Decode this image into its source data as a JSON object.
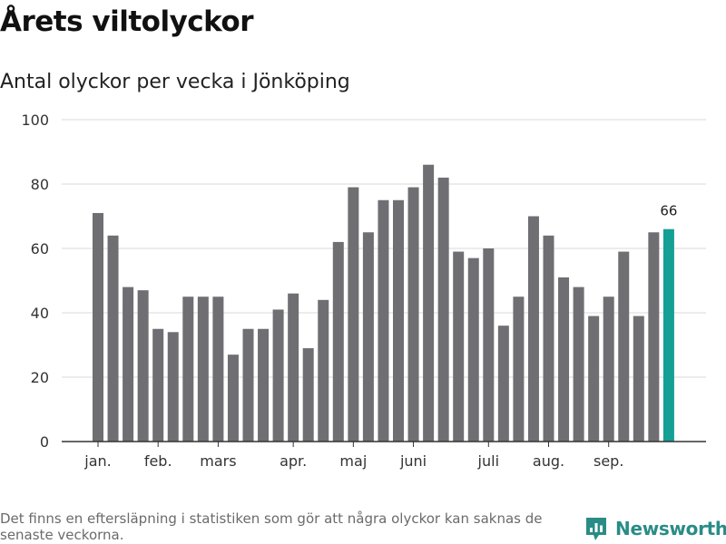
{
  "header": {
    "title": "Årets viltolyckor",
    "subtitle": "Antal olyckor per vecka i Jönköping"
  },
  "footer": {
    "note": "Det finns en eftersläpning i statistiken som gör att några olyckor kan saknas de senaste veckorna.",
    "brand": "Newsworthy"
  },
  "colors": {
    "bar": "#6f6e72",
    "highlight": "#14a095",
    "grid": "#d9d9d9",
    "axis": "#333333",
    "brand": "#2a8c86"
  },
  "icons": {
    "brand_logo": "bar-chart-speech-bubble-icon"
  },
  "chart_data": {
    "type": "bar",
    "title": "Årets viltolyckor",
    "subtitle": "Antal olyckor per vecka i Jönköping",
    "xlabel": "",
    "ylabel": "",
    "ylim": [
      0,
      100
    ],
    "yticks": [
      0,
      20,
      40,
      60,
      80,
      100
    ],
    "grid": true,
    "legend": "none",
    "values": [
      71,
      64,
      48,
      47,
      35,
      34,
      45,
      45,
      45,
      27,
      35,
      35,
      41,
      46,
      29,
      44,
      62,
      79,
      65,
      75,
      75,
      79,
      86,
      82,
      59,
      57,
      60,
      36,
      45,
      70,
      64,
      51,
      48,
      39,
      45,
      59,
      39,
      65,
      66
    ],
    "month_labels": [
      {
        "label": "jan.",
        "at_bar": 0
      },
      {
        "label": "feb.",
        "at_bar": 4
      },
      {
        "label": "mars",
        "at_bar": 8
      },
      {
        "label": "apr.",
        "at_bar": 13
      },
      {
        "label": "maj",
        "at_bar": 17
      },
      {
        "label": "juni",
        "at_bar": 21
      },
      {
        "label": "juli",
        "at_bar": 26
      },
      {
        "label": "aug.",
        "at_bar": 30
      },
      {
        "label": "sep.",
        "at_bar": 34
      }
    ],
    "highlight_index": 38,
    "highlight_label": "66"
  }
}
